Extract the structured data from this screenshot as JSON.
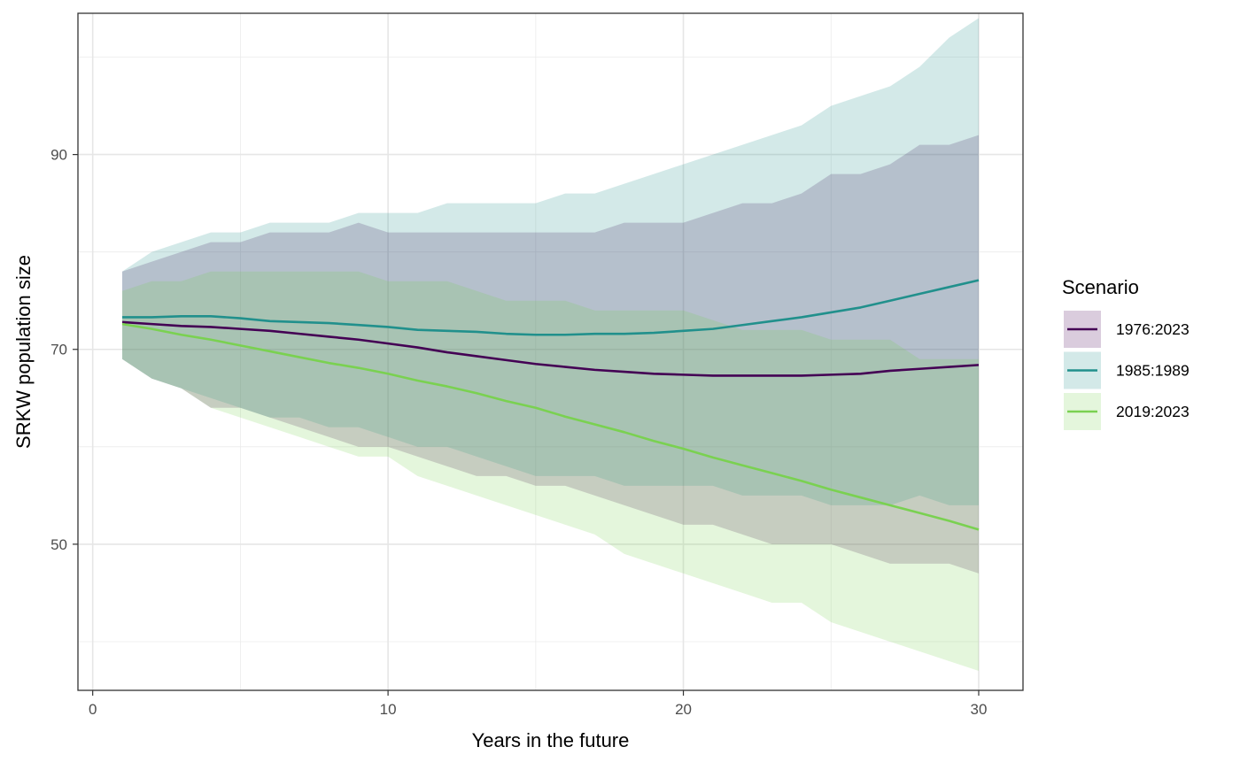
{
  "chart_data": {
    "type": "area",
    "title": "",
    "xlabel": "Years in the future",
    "ylabel": "SRKW population size",
    "xlim": [
      -0.5,
      31.5
    ],
    "ylim": [
      35,
      104.5
    ],
    "x_ticks": [
      0,
      10,
      20,
      30
    ],
    "y_ticks": [
      50,
      70,
      90
    ],
    "x_minor_gridlines": [
      5,
      15,
      25
    ],
    "y_minor_gridlines": [
      40,
      60,
      80,
      100
    ],
    "grid": true,
    "legend_title": "Scenario",
    "legend_position": "right",
    "x": [
      1,
      2,
      3,
      4,
      5,
      6,
      7,
      8,
      9,
      10,
      11,
      12,
      13,
      14,
      15,
      16,
      17,
      18,
      19,
      20,
      21,
      22,
      23,
      24,
      25,
      26,
      27,
      28,
      29,
      30
    ],
    "series": [
      {
        "name": "1976:2023",
        "line_color": "#440154",
        "fill_color": "#440154",
        "fill_opacity": 0.2,
        "mean": [
          72.8,
          72.6,
          72.4,
          72.3,
          72.1,
          71.9,
          71.6,
          71.3,
          71.0,
          70.6,
          70.2,
          69.7,
          69.3,
          68.9,
          68.5,
          68.2,
          67.9,
          67.7,
          67.5,
          67.4,
          67.3,
          67.3,
          67.3,
          67.3,
          67.4,
          67.5,
          67.8,
          68.0,
          68.2,
          68.4
        ],
        "upper": [
          78,
          79,
          80,
          81,
          81,
          82,
          82,
          82,
          83,
          82,
          82,
          82,
          82,
          82,
          82,
          82,
          82,
          83,
          83,
          83,
          84,
          85,
          85,
          86,
          88,
          88,
          89,
          91,
          91,
          92
        ],
        "lower": [
          69,
          67,
          66,
          64,
          64,
          63,
          62,
          61,
          60,
          60,
          59,
          58,
          57,
          57,
          56,
          56,
          55,
          54,
          53,
          52,
          52,
          51,
          50,
          50,
          50,
          49,
          48,
          48,
          48,
          47
        ]
      },
      {
        "name": "1985:1989",
        "line_color": "#21908C",
        "fill_color": "#21908C",
        "fill_opacity": 0.2,
        "mean": [
          73.3,
          73.3,
          73.4,
          73.4,
          73.2,
          72.9,
          72.8,
          72.7,
          72.5,
          72.3,
          72.0,
          71.9,
          71.8,
          71.6,
          71.5,
          71.5,
          71.6,
          71.6,
          71.7,
          71.9,
          72.1,
          72.5,
          72.9,
          73.3,
          73.8,
          74.3,
          75.0,
          75.7,
          76.4,
          77.1
        ],
        "upper": [
          78,
          80,
          81,
          82,
          82,
          83,
          83,
          83,
          84,
          84,
          84,
          85,
          85,
          85,
          85,
          86,
          86,
          87,
          88,
          89,
          90,
          91,
          92,
          93,
          95,
          96,
          97,
          99,
          102,
          104
        ],
        "lower": [
          69,
          67,
          66,
          65,
          64,
          63,
          63,
          62,
          62,
          61,
          60,
          60,
          59,
          58,
          57,
          57,
          57,
          56,
          56,
          56,
          56,
          55,
          55,
          55,
          54,
          54,
          54,
          55,
          54,
          54
        ]
      },
      {
        "name": "2019:2023",
        "line_color": "#7AD151",
        "fill_color": "#7AD151",
        "fill_opacity": 0.2,
        "mean": [
          72.6,
          72.1,
          71.5,
          71.0,
          70.4,
          69.8,
          69.2,
          68.6,
          68.1,
          67.5,
          66.8,
          66.2,
          65.5,
          64.7,
          64.0,
          63.1,
          62.3,
          61.5,
          60.6,
          59.8,
          58.9,
          58.1,
          57.3,
          56.5,
          55.6,
          54.8,
          54.0,
          53.2,
          52.4,
          51.5
        ],
        "upper": [
          76,
          77,
          77,
          78,
          78,
          78,
          78,
          78,
          78,
          77,
          77,
          77,
          76,
          75,
          75,
          75,
          74,
          74,
          74,
          74,
          73,
          72,
          72,
          72,
          71,
          71,
          71,
          69,
          69,
          69
        ],
        "lower": [
          69,
          67,
          66,
          64,
          63,
          62,
          61,
          60,
          59,
          59,
          57,
          56,
          55,
          54,
          53,
          52,
          51,
          49,
          48,
          47,
          46,
          45,
          44,
          44,
          42,
          41,
          40,
          39,
          38,
          37
        ]
      }
    ]
  }
}
